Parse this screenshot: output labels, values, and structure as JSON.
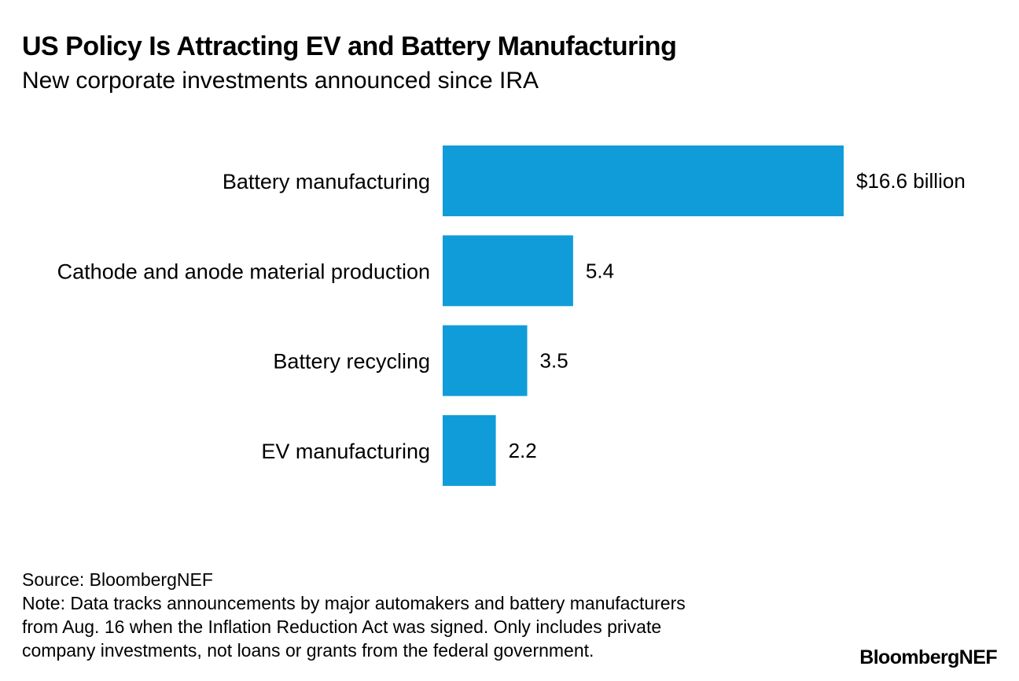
{
  "header": {
    "title": "US Policy Is Attracting EV and Battery Manufacturing",
    "subtitle": "New corporate investments announced since IRA"
  },
  "footer": {
    "source": "Source: BloombergNEF",
    "note_lines": [
      "Note: Data tracks announcements by major automakers and battery manufacturers",
      "from Aug. 16 when the Inflation Reduction Act was signed. Only includes private",
      "company investments, not loans or grants from the federal government."
    ],
    "brand": "BloombergNEF"
  },
  "colors": {
    "bar": "#109cd9",
    "text": "#000000",
    "background": "#ffffff"
  },
  "chart_data": {
    "type": "bar",
    "orientation": "horizontal",
    "title": "US Policy Is Attracting EV and Battery Manufacturing",
    "subtitle": "New corporate investments announced since IRA",
    "categories": [
      "Battery manufacturing",
      "Cathode and anode material production",
      "Battery recycling",
      "EV manufacturing"
    ],
    "values": [
      16.6,
      5.4,
      3.5,
      2.2
    ],
    "value_labels": [
      "$16.6 billion",
      "5.4",
      "3.5",
      "2.2"
    ],
    "unit": "billion USD",
    "xlim": [
      0,
      16.6
    ],
    "grid": false,
    "legend": "none"
  }
}
